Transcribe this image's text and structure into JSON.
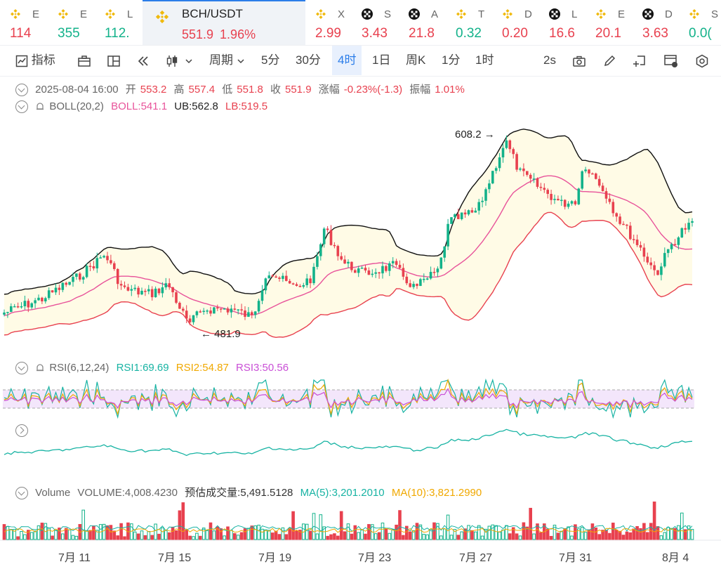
{
  "tickers": [
    {
      "symbol": "E",
      "price": "114",
      "color": "red",
      "icon": "binance-icon"
    },
    {
      "symbol": "E",
      "price": "355",
      "color": "green",
      "icon": "binance-icon"
    },
    {
      "symbol": "L",
      "price": "112.",
      "color": "green",
      "icon": "binance-icon"
    },
    {
      "symbol": "BCH/USDT",
      "price": "551.9",
      "change": "1.96%",
      "color": "red",
      "icon": "binance-icon",
      "active": true
    },
    {
      "symbol": "X",
      "price": "2.99",
      "color": "red",
      "icon": "binance-icon"
    },
    {
      "symbol": "S",
      "price": "3.43",
      "color": "red",
      "icon": "okx-icon"
    },
    {
      "symbol": "A",
      "price": "21.8",
      "color": "red",
      "icon": "okx-icon"
    },
    {
      "symbol": "T",
      "price": "0.32",
      "color": "green",
      "icon": "binance-icon"
    },
    {
      "symbol": "D",
      "price": "0.20",
      "color": "red",
      "icon": "binance-icon"
    },
    {
      "symbol": "L",
      "price": "16.6",
      "color": "red",
      "icon": "okx-icon"
    },
    {
      "symbol": "E",
      "price": "20.1",
      "color": "red",
      "icon": "binance-icon"
    },
    {
      "symbol": "D",
      "price": "3.63",
      "color": "red",
      "icon": "okx-icon"
    },
    {
      "symbol": "S",
      "price": "0.0(",
      "color": "green",
      "icon": "binance-icon"
    }
  ],
  "toolbar": {
    "indicators": "指标",
    "period": "周期",
    "intervals": [
      "5分",
      "30分",
      "4时",
      "1日",
      "周K",
      "1分",
      "1时"
    ],
    "selected_interval": "4时",
    "refresh": "2s"
  },
  "ohlc": {
    "time": "2025-08-04 16:00",
    "open_label": "开",
    "open": "553.2",
    "high_label": "高",
    "high": "557.4",
    "low_label": "低",
    "low": "551.8",
    "close_label": "收",
    "close": "551.9",
    "change_label": "涨幅",
    "change": "-0.23%(-1.3)",
    "amp_label": "振幅",
    "amp": "1.01%"
  },
  "boll": {
    "name": "BOLL(20,2)",
    "mid": "BOLL:541.1",
    "ub": "UB:562.8",
    "lb": "LB:519.5"
  },
  "rsi": {
    "name": "RSI(6,12,24)",
    "rsi1": "RSI1:69.69",
    "rsi2": "RSI2:54.87",
    "rsi3": "RSI3:50.56"
  },
  "volume": {
    "name": "Volume",
    "vol": "VOLUME:4,008.4230",
    "est": "预估成交量:5,491.5128",
    "ma5": "MA(5):3,201.2010",
    "ma10": "MA(10):3,821.2990"
  },
  "annotations": {
    "high": "608.2",
    "low": "481.9"
  },
  "x_labels": [
    "7月 11",
    "7月 15",
    "7月 19",
    "7月 23",
    "7月 27",
    "7月 31",
    "8月 4"
  ],
  "colors": {
    "up": "#13b28a",
    "down": "#e8414f",
    "accent": "#2b7de9",
    "boll_mid": "#e8539a",
    "band_fill": "#fffbe6"
  }
}
